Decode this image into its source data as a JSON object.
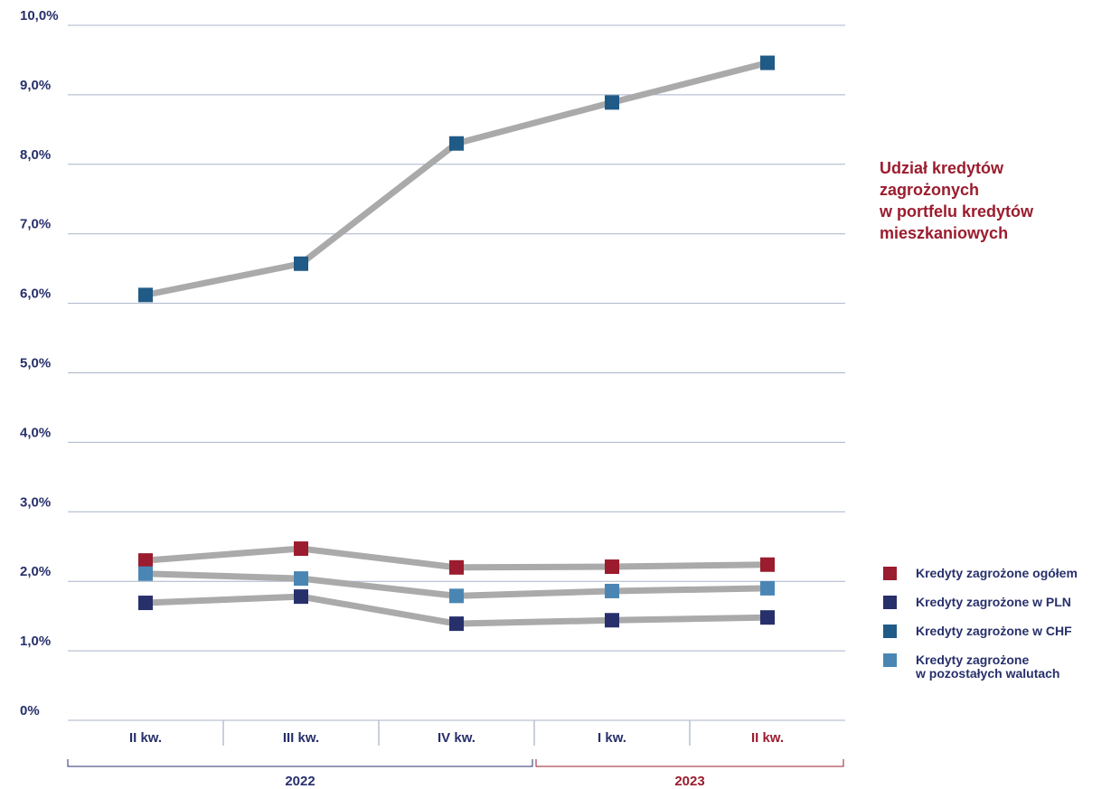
{
  "chart_data": {
    "type": "line",
    "title": "Udział kredytów\nzagrożonych\nw portfelu kredytów\nmieszkaniowych",
    "categories": [
      "II kw.",
      "III kw.",
      "IV kw.",
      "I kw.",
      "II kw."
    ],
    "category_colors": [
      "#27306b",
      "#27306b",
      "#27306b",
      "#27306b",
      "#9b1c2e"
    ],
    "x_groups": [
      {
        "label": "2022",
        "span": 3,
        "color": "#27306b"
      },
      {
        "label": "2023",
        "span": 2,
        "color": "#9b1c2e"
      }
    ],
    "line_color": "#aaaaaa",
    "series": [
      {
        "name": "Kredyty zagrożone ogółem",
        "color": "#9b1c2e",
        "values": [
          2.3,
          2.47,
          2.2,
          2.21,
          2.24
        ]
      },
      {
        "name": "Kredyty zagrożone w PLN",
        "color": "#27306b",
        "values": [
          1.69,
          1.78,
          1.39,
          1.44,
          1.48
        ]
      },
      {
        "name": "Kredyty zagrożone w CHF",
        "color": "#205a87",
        "values": [
          6.12,
          6.57,
          8.3,
          8.89,
          9.46
        ]
      },
      {
        "name": "Kredyty zagrożone\nw pozostałych walutach",
        "color": "#4a86b4",
        "values": [
          2.11,
          2.04,
          1.79,
          1.86,
          1.9
        ]
      }
    ],
    "ylim": [
      0,
      10
    ],
    "yticks": [
      {
        "value": 0,
        "label": "0%"
      },
      {
        "value": 1,
        "label": "1,0%"
      },
      {
        "value": 2,
        "label": "2,0%"
      },
      {
        "value": 3,
        "label": "3,0%"
      },
      {
        "value": 4,
        "label": "4,0%"
      },
      {
        "value": 5,
        "label": "5,0%"
      },
      {
        "value": 6,
        "label": "6,0%"
      },
      {
        "value": 7,
        "label": "7,0%"
      },
      {
        "value": 8,
        "label": "8,0%"
      },
      {
        "value": 9,
        "label": "9,0%"
      },
      {
        "value": 10,
        "label": "10,0%"
      }
    ],
    "grid": true
  }
}
